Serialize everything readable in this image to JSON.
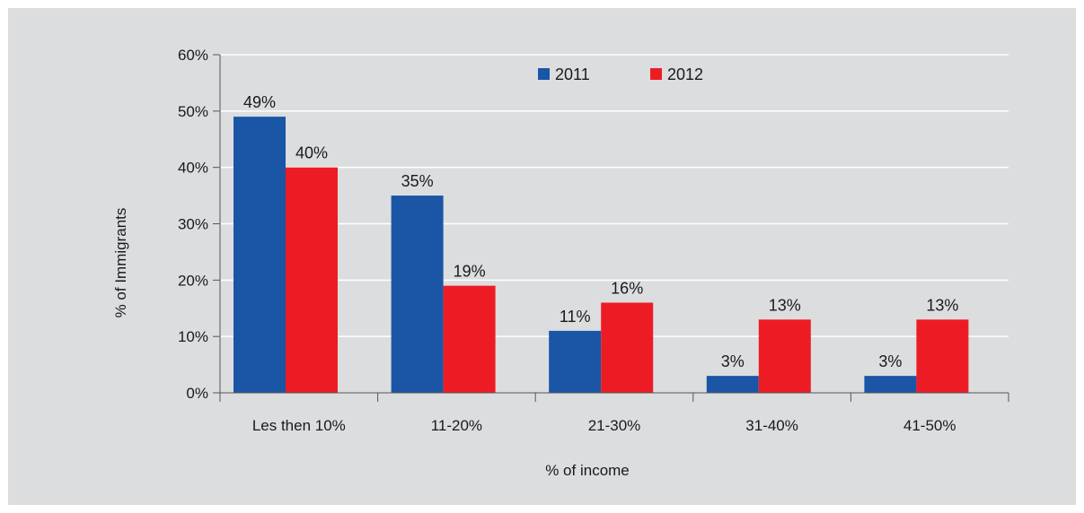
{
  "chart_data": {
    "type": "bar",
    "title": "",
    "xlabel": "% of income",
    "ylabel": "% of Immigrants",
    "categories": [
      "Les then 10%",
      "11-20%",
      "21-30%",
      "31-40%",
      "41-50%"
    ],
    "series": [
      {
        "name": "2011",
        "color": "#1a55a6",
        "values": [
          49,
          35,
          11,
          3,
          3
        ],
        "labels": [
          "49%",
          "35%",
          "11%",
          "3%",
          "3%"
        ]
      },
      {
        "name": "2012",
        "color": "#ed1c24",
        "values": [
          40,
          19,
          16,
          13,
          13
        ],
        "labels": [
          "40%",
          "19%",
          "16%",
          "13%",
          "13%"
        ]
      }
    ],
    "ylim": [
      0,
      60
    ],
    "yticks": [
      0,
      10,
      20,
      30,
      40,
      50,
      60
    ],
    "ytick_labels": [
      "0%",
      "10%",
      "20%",
      "30%",
      "40%",
      "50%",
      "60%"
    ],
    "grid": true,
    "legend_position": "top-center",
    "colors": {
      "background": "#dcdddf",
      "grid": "#ffffff",
      "axis": "#555555"
    }
  }
}
